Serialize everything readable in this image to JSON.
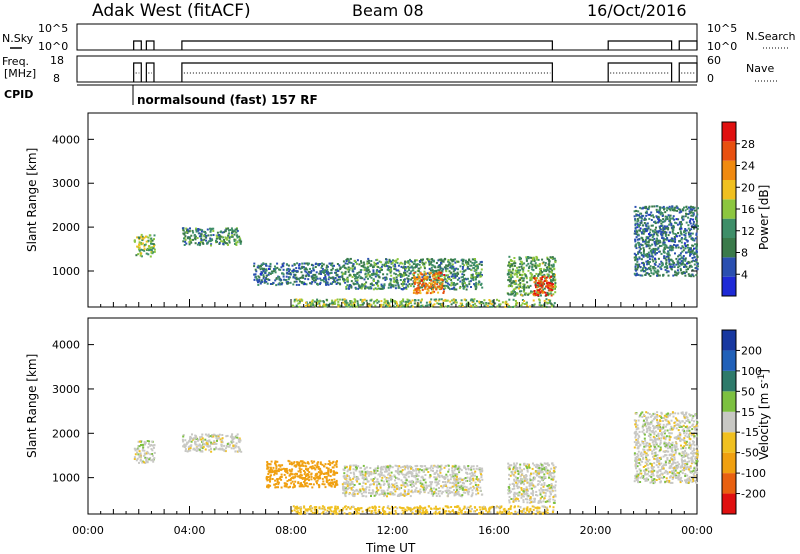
{
  "header": {
    "station": "Adak West (fitACF)",
    "beam": "Beam 08",
    "date": "16/Oct/2016"
  },
  "status_panels": {
    "nsky_label": "N.Sky",
    "nsky_ticks": [
      "10^5",
      "10^0"
    ],
    "nsearch_label": "N.Search",
    "nsearch_ticks": [
      "10^5",
      "10^0"
    ],
    "freq_label_1": "Freq.",
    "freq_label_2": "[MHz]",
    "freq_ticks": [
      "18",
      "8"
    ],
    "nave_label": "Nave",
    "nave_ticks": [
      "60",
      "0"
    ],
    "cpid_label": "CPID",
    "cpid_text": "normalsound (fast) 157 RF"
  },
  "colors": {
    "power_scale": [
      "#1e2ad6",
      "#2a4fb0",
      "#3a7a4a",
      "#3e8e68",
      "#8cc63f",
      "#f0c020",
      "#f08a10",
      "#e85010",
      "#e01010"
    ],
    "velocity_scale": [
      "#1838a0",
      "#2060b8",
      "#2e7a6a",
      "#7cc040",
      "#c8c8c4",
      "#f0c020",
      "#f0a010",
      "#e86010",
      "#e01010"
    ]
  },
  "chart_data": [
    {
      "type": "heatmap",
      "title": "Power",
      "xlabel": "",
      "ylabel": "Slant Range [km]",
      "x_ticks": [
        "00:00",
        "04:00",
        "08:00",
        "12:00",
        "16:00",
        "20:00",
        "00:00"
      ],
      "y_ticks": [
        "1000",
        "2000",
        "3000",
        "4000"
      ],
      "ylim": [
        180,
        4600
      ],
      "xlim_hours": [
        0,
        24
      ],
      "colorbar_label": "Power [dB]",
      "colorbar_ticks": [
        "4",
        "8",
        "12",
        "16",
        "20",
        "24",
        "28"
      ],
      "colorbar_range": [
        0,
        30
      ],
      "echo_regions": [
        {
          "t_start": 1.8,
          "t_end": 2.6,
          "r_low": 1350,
          "r_high": 1850,
          "level": 14
        },
        {
          "t_start": 3.7,
          "t_end": 6.0,
          "r_low": 1600,
          "r_high": 2000,
          "level": 10
        },
        {
          "t_start": 6.5,
          "t_end": 10.0,
          "r_low": 700,
          "r_high": 1200,
          "level": 8
        },
        {
          "t_start": 10.0,
          "t_end": 15.5,
          "r_low": 600,
          "r_high": 1300,
          "level": 10
        },
        {
          "t_start": 12.8,
          "t_end": 14.0,
          "r_low": 500,
          "r_high": 1000,
          "level": 22
        },
        {
          "t_start": 16.5,
          "t_end": 18.4,
          "r_low": 450,
          "r_high": 1350,
          "level": 12
        },
        {
          "t_start": 17.5,
          "t_end": 18.3,
          "r_low": 450,
          "r_high": 900,
          "level": 26
        },
        {
          "t_start": 8.0,
          "t_end": 18.4,
          "r_low": 200,
          "r_high": 380,
          "level": 14
        },
        {
          "t_start": 21.5,
          "t_end": 24.0,
          "r_low": 900,
          "r_high": 2500,
          "level": 8
        }
      ]
    },
    {
      "type": "heatmap",
      "title": "Velocity",
      "xlabel": "Time UT",
      "ylabel": "Slant Range [km]",
      "x_ticks": [
        "00:00",
        "04:00",
        "08:00",
        "12:00",
        "16:00",
        "20:00",
        "00:00"
      ],
      "y_ticks": [
        "1000",
        "2000",
        "3000",
        "4000"
      ],
      "ylim": [
        180,
        4600
      ],
      "xlim_hours": [
        0,
        24
      ],
      "colorbar_label": "Velocity [m s^-1]",
      "colorbar_ticks": [
        "200",
        "100",
        "50",
        "15",
        "-15",
        "-50",
        "-100",
        "-200"
      ],
      "colorbar_range": [
        -250,
        250
      ],
      "echo_regions": [
        {
          "t_start": 1.8,
          "t_end": 2.6,
          "r_low": 1350,
          "r_high": 1850,
          "level": 0
        },
        {
          "t_start": 3.7,
          "t_end": 6.0,
          "r_low": 1600,
          "r_high": 2000,
          "level": 0
        },
        {
          "t_start": 7.0,
          "t_end": 9.8,
          "r_low": 800,
          "r_high": 1400,
          "level": -70
        },
        {
          "t_start": 10.0,
          "t_end": 15.5,
          "r_low": 600,
          "r_high": 1300,
          "level": 0
        },
        {
          "t_start": 16.5,
          "t_end": 18.4,
          "r_low": 450,
          "r_high": 1350,
          "level": 0
        },
        {
          "t_start": 8.0,
          "t_end": 18.4,
          "r_low": 200,
          "r_high": 380,
          "level": -30
        },
        {
          "t_start": 21.5,
          "t_end": 24.0,
          "r_low": 900,
          "r_high": 2500,
          "level": 0
        }
      ]
    }
  ]
}
